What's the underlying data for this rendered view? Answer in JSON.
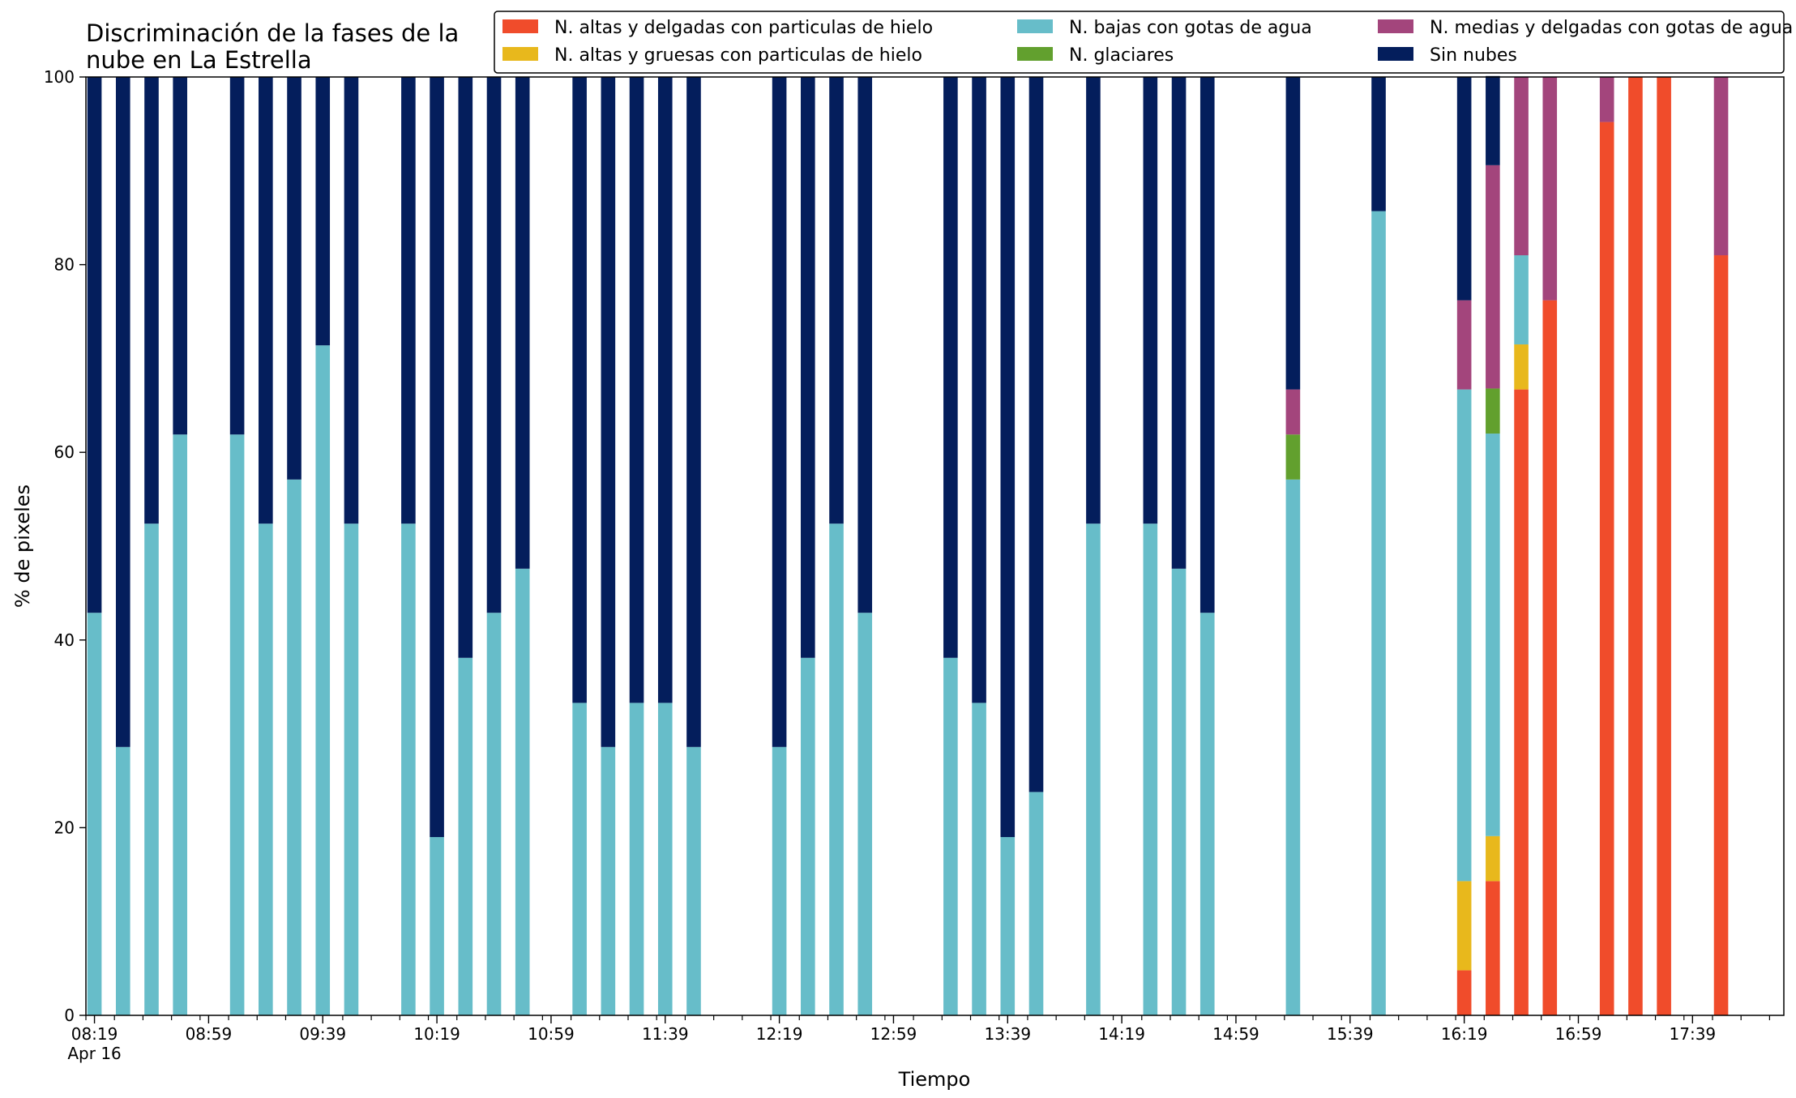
{
  "chart_data": {
    "type": "bar",
    "stacked": true,
    "title_lines": [
      "Discriminación de la fases de la",
      "nube en La Estrella"
    ],
    "xlabel": "Tiempo",
    "ylabel": "% de pixeles",
    "ylim": [
      0,
      100
    ],
    "yticks": [
      "0",
      "20",
      "40",
      "60",
      "80",
      "100"
    ],
    "xlim_minutes": [
      496,
      1091
    ],
    "minor_tick_step_minutes": 10,
    "xticks": [
      {
        "time": "08:19",
        "sub": "Apr 16"
      },
      {
        "time": "08:59",
        "sub": ""
      },
      {
        "time": "09:39",
        "sub": ""
      },
      {
        "time": "10:19",
        "sub": ""
      },
      {
        "time": "10:59",
        "sub": ""
      },
      {
        "time": "11:39",
        "sub": ""
      },
      {
        "time": "12:19",
        "sub": ""
      },
      {
        "time": "12:59",
        "sub": ""
      },
      {
        "time": "13:39",
        "sub": ""
      },
      {
        "time": "14:19",
        "sub": ""
      },
      {
        "time": "14:59",
        "sub": ""
      },
      {
        "time": "15:39",
        "sub": ""
      },
      {
        "time": "16:19",
        "sub": ""
      },
      {
        "time": "16:59",
        "sub": ""
      },
      {
        "time": "17:39",
        "sub": ""
      }
    ],
    "legend_position": "top-right",
    "series": [
      {
        "name": "N. altas y delgadas con particulas de hielo",
        "color": "#f04c2b"
      },
      {
        "name": "N. altas y gruesas con particulas de hielo",
        "color": "#e8b81c"
      },
      {
        "name": "N. bajas con gotas de agua",
        "color": "#67bdc9"
      },
      {
        "name": "N. glaciares",
        "color": "#62a02e"
      },
      {
        "name": "N. medias y delgadas con gotas de agua",
        "color": "#a3457c"
      },
      {
        "name": "Sin nubes",
        "color": "#041e5c"
      }
    ],
    "bars": [
      {
        "x": "08:19",
        "values": [
          0,
          0,
          42.9,
          0,
          0,
          57.1
        ]
      },
      {
        "x": "08:29",
        "values": [
          0,
          0,
          28.6,
          0,
          0,
          71.4
        ]
      },
      {
        "x": "08:39",
        "values": [
          0,
          0,
          52.4,
          0,
          0,
          47.6
        ]
      },
      {
        "x": "08:49",
        "values": [
          0,
          0,
          61.9,
          0,
          0,
          38.1
        ]
      },
      {
        "x": "09:09",
        "values": [
          0,
          0,
          61.9,
          0,
          0,
          38.1
        ]
      },
      {
        "x": "09:19",
        "values": [
          0,
          0,
          52.4,
          0,
          0,
          47.6
        ]
      },
      {
        "x": "09:29",
        "values": [
          0,
          0,
          57.1,
          0,
          0,
          42.9
        ]
      },
      {
        "x": "09:39",
        "values": [
          0,
          0,
          71.4,
          0,
          0,
          28.6
        ]
      },
      {
        "x": "09:49",
        "values": [
          0,
          0,
          52.4,
          0,
          0,
          47.6
        ]
      },
      {
        "x": "10:09",
        "values": [
          0,
          0,
          52.4,
          0,
          0,
          47.6
        ]
      },
      {
        "x": "10:19",
        "values": [
          0,
          0,
          19.0,
          0,
          0,
          81.0
        ]
      },
      {
        "x": "10:29",
        "values": [
          0,
          0,
          38.1,
          0,
          0,
          61.9
        ]
      },
      {
        "x": "10:39",
        "values": [
          0,
          0,
          42.9,
          0,
          0,
          57.1
        ]
      },
      {
        "x": "10:49",
        "values": [
          0,
          0,
          47.6,
          0,
          0,
          52.4
        ]
      },
      {
        "x": "11:09",
        "values": [
          0,
          0,
          33.3,
          0,
          0,
          66.7
        ]
      },
      {
        "x": "11:19",
        "values": [
          0,
          0,
          28.6,
          0,
          0,
          71.4
        ]
      },
      {
        "x": "11:29",
        "values": [
          0,
          0,
          33.3,
          0,
          0,
          66.7
        ]
      },
      {
        "x": "11:39",
        "values": [
          0,
          0,
          33.3,
          0,
          0,
          66.7
        ]
      },
      {
        "x": "11:49",
        "values": [
          0,
          0,
          28.6,
          0,
          0,
          71.4
        ]
      },
      {
        "x": "12:19",
        "values": [
          0,
          0,
          28.6,
          0,
          0,
          71.4
        ]
      },
      {
        "x": "12:29",
        "values": [
          0,
          0,
          38.1,
          0,
          0,
          61.9
        ]
      },
      {
        "x": "12:39",
        "values": [
          0,
          0,
          52.4,
          0,
          0,
          47.6
        ]
      },
      {
        "x": "12:49",
        "values": [
          0,
          0,
          42.9,
          0,
          0,
          57.1
        ]
      },
      {
        "x": "13:19",
        "values": [
          0,
          0,
          38.1,
          0,
          0,
          61.9
        ]
      },
      {
        "x": "13:29",
        "values": [
          0,
          0,
          33.3,
          0,
          0,
          66.7
        ]
      },
      {
        "x": "13:39",
        "values": [
          0,
          0,
          19.0,
          0,
          0,
          81.0
        ]
      },
      {
        "x": "13:49",
        "values": [
          0,
          0,
          23.8,
          0,
          0,
          76.2
        ]
      },
      {
        "x": "14:09",
        "values": [
          0,
          0,
          52.4,
          0,
          0,
          47.6
        ]
      },
      {
        "x": "14:29",
        "values": [
          0,
          0,
          52.4,
          0,
          0,
          47.6
        ]
      },
      {
        "x": "14:39",
        "values": [
          0,
          0,
          47.6,
          0,
          0,
          52.4
        ]
      },
      {
        "x": "14:49",
        "values": [
          0,
          0,
          42.9,
          0,
          0,
          57.1
        ]
      },
      {
        "x": "15:19",
        "values": [
          0,
          0,
          57.1,
          4.8,
          4.8,
          33.3
        ]
      },
      {
        "x": "15:49",
        "values": [
          0,
          0,
          85.7,
          0,
          0,
          14.3
        ]
      },
      {
        "x": "16:19",
        "values": [
          4.8,
          9.5,
          52.4,
          0,
          9.5,
          23.8
        ]
      },
      {
        "x": "16:29",
        "values": [
          14.3,
          4.8,
          42.9,
          4.8,
          23.8,
          9.5
        ]
      },
      {
        "x": "16:39",
        "values": [
          66.7,
          4.8,
          9.5,
          0,
          19.0,
          0
        ]
      },
      {
        "x": "16:49",
        "values": [
          76.2,
          0,
          0,
          0,
          23.8,
          0
        ]
      },
      {
        "x": "17:09",
        "values": [
          95.2,
          0,
          0,
          0,
          4.8,
          0
        ]
      },
      {
        "x": "17:19",
        "values": [
          100,
          0,
          0,
          0,
          0,
          0
        ]
      },
      {
        "x": "17:29",
        "values": [
          100,
          0,
          0,
          0,
          0,
          0
        ]
      },
      {
        "x": "17:49",
        "values": [
          81.0,
          0,
          0,
          0,
          19.0,
          0
        ]
      }
    ]
  }
}
